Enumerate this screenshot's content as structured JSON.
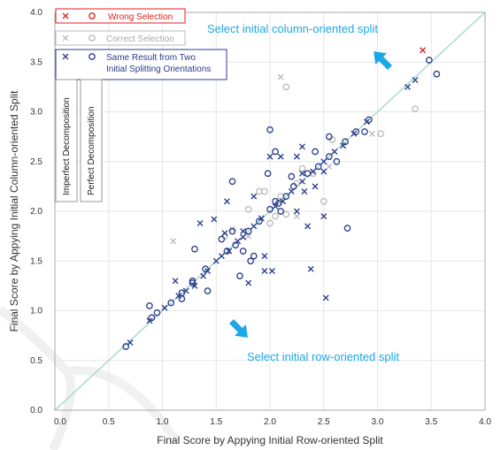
{
  "chart_data": {
    "type": "scatter",
    "xlabel": "Final Score by Appying Initial Row-oriented Split",
    "ylabel": "Final Score by Appying Initial Column-oriented Split",
    "xlim": [
      0.0,
      4.0
    ],
    "ylim": [
      0.0,
      4.0
    ],
    "x_ticks": [
      "0.0",
      "0.5",
      "1.0",
      "1.5",
      "2.0",
      "2.5",
      "3.0",
      "3.5",
      "4.0"
    ],
    "y_ticks": [
      "0.0",
      "0.5",
      "1.0",
      "1.5",
      "2.0",
      "2.5",
      "3.0",
      "3.5",
      "4.0"
    ],
    "grid": true,
    "diagonal_color": "#a8dcc8",
    "annotations": {
      "column": "Select initial column-oriented split",
      "row": "Select initial row-oriented split"
    },
    "legend": {
      "wrong": "Wrong Selection",
      "correct": "Correct Selection",
      "same_line1": "Same Result from Two",
      "same_line2": "Initial Splitting Orientations",
      "imperfect": "Imperfect Decomposition",
      "perfect": "Perfect Decomposition"
    },
    "colors": {
      "wrong": "#e02020",
      "correct": "#bbbbbb",
      "same": "#2a3c8c",
      "arrow": "#1ba8e6"
    },
    "series": [
      {
        "key": "wrong",
        "marker": "x",
        "values": [
          [
            3.42,
            3.62
          ]
        ]
      },
      {
        "key": "correct",
        "marker": "x",
        "values": [
          [
            1.1,
            1.7
          ],
          [
            2.1,
            3.35
          ],
          [
            2.55,
            2.45
          ],
          [
            2.95,
            2.78
          ],
          [
            1.8,
            1.75
          ],
          [
            1.65,
            1.82
          ],
          [
            2.25,
            1.95
          ]
        ]
      },
      {
        "key": "correct",
        "marker": "o",
        "values": [
          [
            1.9,
            2.2
          ],
          [
            1.95,
            2.2
          ],
          [
            2.15,
            3.25
          ],
          [
            3.35,
            3.03
          ],
          [
            2.05,
            1.95
          ],
          [
            2.1,
            2.15
          ],
          [
            2.25,
            2.28
          ],
          [
            2.3,
            2.43
          ],
          [
            2.4,
            2.38
          ],
          [
            2.15,
            1.97
          ],
          [
            1.8,
            2.02
          ],
          [
            1.58,
            1.75
          ],
          [
            2.58,
            2.72
          ],
          [
            3.03,
            2.78
          ],
          [
            2.0,
            1.88
          ],
          [
            2.5,
            2.1
          ]
        ]
      },
      {
        "key": "same",
        "marker": "x",
        "values": [
          [
            0.7,
            0.68
          ],
          [
            0.88,
            0.9
          ],
          [
            1.02,
            1.03
          ],
          [
            1.15,
            1.15
          ],
          [
            1.22,
            1.2
          ],
          [
            1.3,
            1.25
          ],
          [
            1.38,
            1.35
          ],
          [
            1.42,
            1.4
          ],
          [
            1.5,
            1.5
          ],
          [
            1.55,
            1.55
          ],
          [
            1.62,
            1.6
          ],
          [
            1.7,
            1.7
          ],
          [
            1.75,
            1.74
          ],
          [
            1.85,
            1.85
          ],
          [
            1.92,
            1.93
          ],
          [
            2.05,
            2.05
          ],
          [
            2.12,
            2.1
          ],
          [
            2.2,
            2.2
          ],
          [
            2.3,
            2.3
          ],
          [
            2.4,
            2.4
          ],
          [
            2.5,
            2.5
          ],
          [
            2.6,
            2.6
          ],
          [
            2.68,
            2.66
          ],
          [
            2.78,
            2.78
          ],
          [
            2.9,
            2.9
          ],
          [
            3.28,
            3.25
          ],
          [
            3.35,
            3.32
          ],
          [
            1.48,
            1.92
          ],
          [
            1.58,
            1.78
          ],
          [
            1.75,
            1.8
          ],
          [
            1.85,
            2.15
          ],
          [
            1.95,
            1.55
          ],
          [
            2.02,
            1.4
          ],
          [
            2.25,
            2.0
          ],
          [
            2.25,
            2.55
          ],
          [
            2.3,
            2.38
          ],
          [
            2.32,
            2.2
          ],
          [
            2.38,
            1.42
          ],
          [
            2.5,
            1.95
          ],
          [
            2.52,
            1.13
          ],
          [
            2.3,
            2.65
          ],
          [
            2.5,
            2.4
          ],
          [
            1.6,
            2.1
          ],
          [
            1.35,
            1.88
          ],
          [
            1.8,
            1.28
          ],
          [
            1.95,
            1.4
          ],
          [
            2.0,
            2.55
          ],
          [
            2.1,
            2.55
          ],
          [
            2.35,
            1.85
          ],
          [
            2.42,
            2.25
          ],
          [
            1.12,
            1.3
          ]
        ]
      },
      {
        "key": "same",
        "marker": "o",
        "values": [
          [
            0.66,
            0.64
          ],
          [
            0.9,
            0.93
          ],
          [
            0.95,
            0.98
          ],
          [
            1.08,
            1.08
          ],
          [
            1.18,
            1.18
          ],
          [
            1.28,
            1.28
          ],
          [
            1.4,
            1.42
          ],
          [
            1.6,
            1.6
          ],
          [
            1.68,
            1.66
          ],
          [
            1.8,
            1.8
          ],
          [
            1.9,
            1.9
          ],
          [
            2.0,
            2.02
          ],
          [
            2.08,
            2.08
          ],
          [
            2.15,
            2.15
          ],
          [
            2.35,
            2.38
          ],
          [
            2.45,
            2.45
          ],
          [
            2.55,
            2.55
          ],
          [
            2.7,
            2.7
          ],
          [
            2.8,
            2.8
          ],
          [
            2.92,
            2.92
          ],
          [
            3.55,
            3.38
          ],
          [
            3.48,
            3.52
          ],
          [
            0.88,
            1.05
          ],
          [
            1.3,
            1.62
          ],
          [
            1.28,
            1.3
          ],
          [
            1.65,
            2.3
          ],
          [
            1.75,
            1.6
          ],
          [
            1.85,
            1.55
          ],
          [
            1.98,
            2.38
          ],
          [
            2.0,
            2.82
          ],
          [
            2.05,
            2.1
          ],
          [
            2.1,
            2.0
          ],
          [
            2.22,
            2.25
          ],
          [
            2.42,
            2.6
          ],
          [
            2.55,
            2.75
          ],
          [
            2.62,
            2.5
          ],
          [
            2.72,
            1.83
          ],
          [
            2.88,
            2.8
          ],
          [
            1.42,
            1.2
          ],
          [
            1.82,
            1.5
          ],
          [
            2.05,
            2.6
          ],
          [
            2.2,
            2.35
          ],
          [
            1.72,
            1.35
          ],
          [
            1.65,
            1.8
          ],
          [
            1.55,
            1.72
          ],
          [
            1.18,
            1.12
          ]
        ]
      }
    ]
  }
}
